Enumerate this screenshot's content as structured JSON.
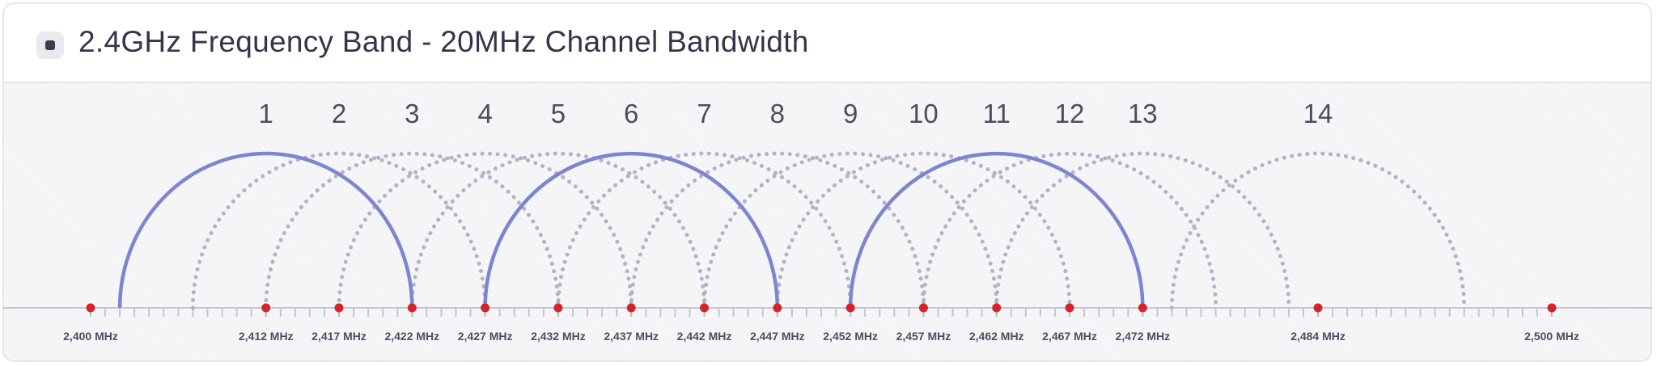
{
  "header": {
    "title": "2.4GHz Frequency Band - 20MHz Channel Bandwidth",
    "icon": "band-icon"
  },
  "chart_data": {
    "type": "diagram",
    "title": "2.4GHz Frequency Band - 20MHz Channel Bandwidth",
    "channel_width_mhz": 20,
    "axis": {
      "min_mhz": 2400,
      "max_mhz": 2500
    },
    "channels": [
      {
        "number": "1",
        "center_mhz": 2412,
        "highlighted": true
      },
      {
        "number": "2",
        "center_mhz": 2417,
        "highlighted": false
      },
      {
        "number": "3",
        "center_mhz": 2422,
        "highlighted": false
      },
      {
        "number": "4",
        "center_mhz": 2427,
        "highlighted": false
      },
      {
        "number": "5",
        "center_mhz": 2432,
        "highlighted": false
      },
      {
        "number": "6",
        "center_mhz": 2437,
        "highlighted": true
      },
      {
        "number": "7",
        "center_mhz": 2442,
        "highlighted": false
      },
      {
        "number": "8",
        "center_mhz": 2447,
        "highlighted": false
      },
      {
        "number": "9",
        "center_mhz": 2452,
        "highlighted": false
      },
      {
        "number": "10",
        "center_mhz": 2457,
        "highlighted": false
      },
      {
        "number": "11",
        "center_mhz": 2462,
        "highlighted": true
      },
      {
        "number": "12",
        "center_mhz": 2467,
        "highlighted": false
      },
      {
        "number": "13",
        "center_mhz": 2472,
        "highlighted": false
      },
      {
        "number": "14",
        "center_mhz": 2484,
        "highlighted": false
      }
    ],
    "freq_labels": [
      {
        "mhz": 2400,
        "text": "2,400 MHz"
      },
      {
        "mhz": 2412,
        "text": "2,412 MHz"
      },
      {
        "mhz": 2417,
        "text": "2,417 MHz"
      },
      {
        "mhz": 2422,
        "text": "2,422 MHz"
      },
      {
        "mhz": 2427,
        "text": "2,427 MHz"
      },
      {
        "mhz": 2432,
        "text": "2,432 MHz"
      },
      {
        "mhz": 2437,
        "text": "2,437 MHz"
      },
      {
        "mhz": 2442,
        "text": "2,442 MHz"
      },
      {
        "mhz": 2447,
        "text": "2,447 MHz"
      },
      {
        "mhz": 2452,
        "text": "2,452 MHz"
      },
      {
        "mhz": 2457,
        "text": "2,457 MHz"
      },
      {
        "mhz": 2462,
        "text": "2,462 MHz"
      },
      {
        "mhz": 2467,
        "text": "2,467 MHz"
      },
      {
        "mhz": 2472,
        "text": "2,472 MHz"
      },
      {
        "mhz": 2484,
        "text": "2,484 MHz"
      },
      {
        "mhz": 2500,
        "text": "2,500 MHz"
      }
    ],
    "colors": {
      "highlight": "#7b86d0",
      "dotted": "#b2b3c4",
      "marker": "#d6222a",
      "axis": "#c4c5d3"
    }
  }
}
